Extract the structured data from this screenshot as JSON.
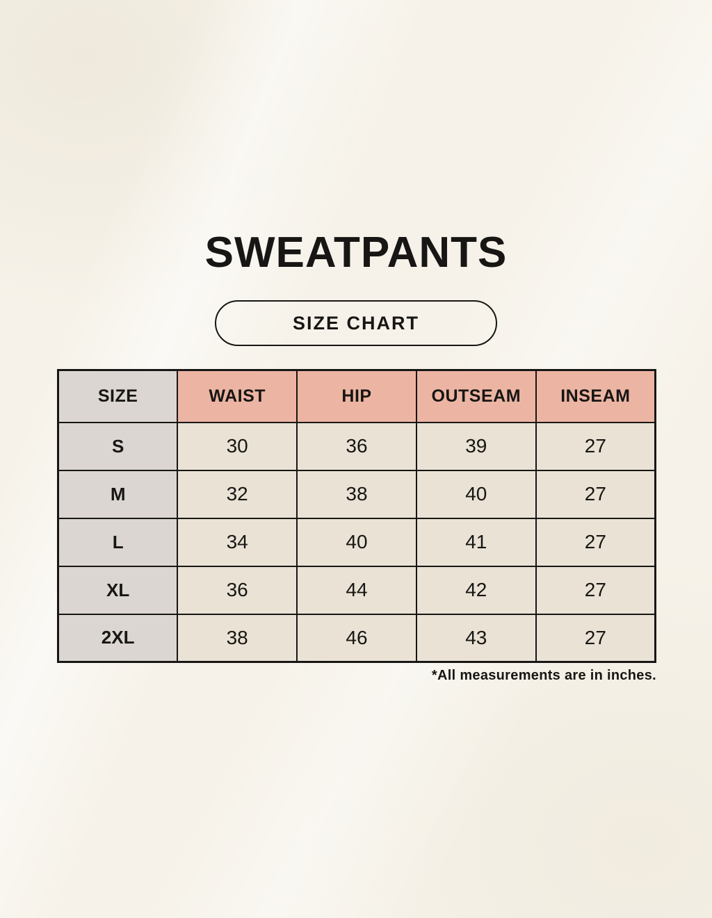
{
  "header": {
    "title": "SWEATPANTS",
    "badge_label": "SIZE CHART"
  },
  "colors": {
    "page_background": "#f6f2e9",
    "header_accent": "#ecb5a3",
    "size_column_fill": "#dbd6d1",
    "cell_fill": "#e9e2d5",
    "border": "#171614",
    "text": "#171614"
  },
  "chart_data": {
    "type": "table",
    "title": "SWEATPANTS",
    "subtitle_badge": "SIZE CHART",
    "columns": [
      "SIZE",
      "WAIST",
      "HIP",
      "OUTSEAM",
      "INSEAM"
    ],
    "rows": [
      {
        "size": "S",
        "values": [
          30,
          36,
          39,
          27
        ]
      },
      {
        "size": "M",
        "values": [
          32,
          38,
          40,
          27
        ]
      },
      {
        "size": "L",
        "values": [
          34,
          40,
          41,
          27
        ]
      },
      {
        "size": "XL",
        "values": [
          36,
          44,
          42,
          27
        ]
      },
      {
        "size": "2XL",
        "values": [
          38,
          46,
          43,
          27
        ]
      }
    ],
    "footnote": "*All measurements are in inches.",
    "layout": {
      "grid": true,
      "header_row_highlighted": true,
      "size_column_highlighted": true,
      "footnote_position": "bottom-right"
    }
  }
}
